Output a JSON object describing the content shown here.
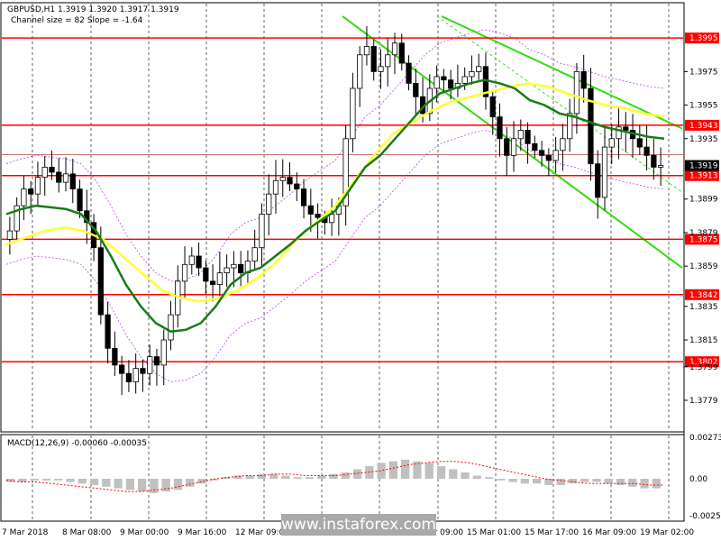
{
  "header": {
    "symbol_line": "GBPUSD,H1  1.3919 1.3920 1.3917 1.3919",
    "channel_line": "Channel size = 82 Slope = -1.64"
  },
  "macd_label": "MACD(12,26,9) -0.00060 -0.00035",
  "watermark": "www.instaforex.com",
  "colors": {
    "level_line": "#ff0000",
    "level_badge": "#ff0000",
    "ma_fast": "#1a7a1a",
    "ma_slow": "#ffff33",
    "channel": "#33dd11",
    "candles": "#000000",
    "envelope": "#b64ce0",
    "macd_hist": "#c0c0c0",
    "macd_signal": "#ff0000",
    "price_badge": "#000000"
  },
  "chart_data": {
    "type": "candlestick",
    "price_axis": {
      "ylim": [
        1.3765,
        1.4008
      ],
      "ticks": [
        "1.3975",
        "1.3955",
        "1.3935",
        "1.3899",
        "1.3879",
        "1.3859",
        "1.3835",
        "1.3815",
        "1.3799",
        "1.3779"
      ]
    },
    "levels": [
      {
        "value": 1.3995,
        "label": "1.3995"
      },
      {
        "value": 1.3943,
        "label": "1.3943"
      },
      {
        "value": 1.3913,
        "label": "1.3913"
      },
      {
        "value": 1.3875,
        "label": "1.3875"
      },
      {
        "value": 1.3842,
        "label": "1.3842"
      },
      {
        "value": 1.3802,
        "label": "1.3802"
      }
    ],
    "current_price": {
      "value": 1.3919,
      "label": "1.3919"
    },
    "x_labels": [
      "7 Mar 2018",
      "8 Mar 08:00",
      "9 Mar 00:00",
      "9 Mar 16:00",
      "12 Mar 09:00",
      "13 Mar 01:00",
      "13 Mar 17:00",
      "14 Mar 09:00",
      "15 Mar 01:00",
      "15 Mar 17:00",
      "16 Mar 09:00",
      "19 Mar 02:00"
    ],
    "close_path": [
      1.388,
      1.3895,
      1.3905,
      1.3902,
      1.3912,
      1.3918,
      1.3915,
      1.3909,
      1.3914,
      1.3905,
      1.3892,
      1.3885,
      1.387,
      1.383,
      1.381,
      1.38,
      1.3795,
      1.379,
      1.3798,
      1.3795,
      1.3805,
      1.38,
      1.3815,
      1.383,
      1.385,
      1.386,
      1.3865,
      1.3858,
      1.385,
      1.3848,
      1.3855,
      1.3858,
      1.386,
      1.3855,
      1.3862,
      1.387,
      1.389,
      1.3902,
      1.391,
      1.3912,
      1.3908,
      1.3905,
      1.3895,
      1.389,
      1.3888,
      1.3885,
      1.389,
      1.3895,
      1.3935,
      1.3965,
      1.3985,
      1.399,
      1.3975,
      1.3978,
      1.3985,
      1.3992,
      1.398,
      1.3968,
      1.396,
      1.395,
      1.3965,
      1.3972,
      1.397,
      1.3965,
      1.3968,
      1.3972,
      1.3975,
      1.3978,
      1.396,
      1.3948,
      1.3935,
      1.3925,
      1.3935,
      1.394,
      1.3932,
      1.3928,
      1.3925,
      1.3922,
      1.3928,
      1.3935,
      1.395,
      1.3975,
      1.3965,
      1.392,
      1.39,
      1.393,
      1.3935,
      1.3942,
      1.394,
      1.3935,
      1.393,
      1.3925,
      1.3918,
      1.3919
    ],
    "ma_fast": [
      1.389,
      1.3893,
      1.3895,
      1.3894,
      1.3893,
      1.389,
      1.388,
      1.3865,
      1.3848,
      1.3835,
      1.3825,
      1.382,
      1.3821,
      1.3825,
      1.3835,
      1.3848,
      1.3855,
      1.3858,
      1.3865,
      1.3872,
      1.388,
      1.3886,
      1.3892,
      1.3905,
      1.3918,
      1.3925,
      1.3935,
      1.3945,
      1.3955,
      1.3962,
      1.3965,
      1.3968,
      1.397,
      1.3968,
      1.3965,
      1.3958,
      1.3955,
      1.395,
      1.3948,
      1.3945,
      1.3942,
      1.394,
      1.3938,
      1.3936,
      1.3935
    ],
    "ma_slow": [
      1.3872,
      1.3876,
      1.388,
      1.3882,
      1.388,
      1.3875,
      1.3865,
      1.3855,
      1.3845,
      1.384,
      1.3838,
      1.384,
      1.3845,
      1.3852,
      1.3862,
      1.3875,
      1.3885,
      1.3895,
      1.391,
      1.3925,
      1.3938,
      1.3945,
      1.3952,
      1.3957,
      1.396,
      1.3963,
      1.3966,
      1.3968,
      1.3966,
      1.3962,
      1.3958,
      1.3955,
      1.3953,
      1.395,
      1.3948
    ],
    "macd_axis": {
      "ticks": [
        "0.00273",
        "0.00",
        "-0.00253"
      ]
    },
    "macd_hist": [
      -0.0002,
      -0.0002,
      -0.0001,
      -0.0001,
      -0.0001,
      -0.0002,
      -0.0003,
      -0.0004,
      -0.0005,
      -0.0006,
      -0.0007,
      -0.0008,
      -0.0009,
      -0.0008,
      -0.0007,
      -0.0005,
      -0.0003,
      -0.0001,
      0.0001,
      0.0002,
      0.0002,
      0.0003,
      0.0003,
      0.0002,
      0.0001,
      0.0001,
      0.0002,
      0.0003,
      0.0004,
      0.0006,
      0.0008,
      0.001,
      0.0011,
      0.0012,
      0.0011,
      0.001,
      0.0008,
      0.0006,
      0.0004,
      0.0002,
      0.0001,
      -0.0001,
      -0.0002,
      -0.0003,
      -0.0003,
      -0.0004,
      -0.0004,
      -0.0003,
      -0.0002,
      -0.0002,
      -0.0003,
      -0.0004,
      -0.0005,
      -0.0006,
      -0.0006
    ],
    "macd_signal": [
      -0.0001,
      -0.0002,
      -0.0002,
      -0.0003,
      -0.0004,
      -0.0005,
      -0.0006,
      -0.0007,
      -0.0008,
      -0.0008,
      -0.0007,
      -0.0006,
      -0.0004,
      -0.0002,
      0.0,
      0.0001,
      0.0002,
      0.0002,
      0.0003,
      0.0003,
      0.0002,
      0.0002,
      0.0002,
      0.0003,
      0.0004,
      0.0005,
      0.0007,
      0.0009,
      0.001,
      0.0011,
      0.0011,
      0.001,
      0.0008,
      0.0006,
      0.0004,
      0.0002,
      0.0,
      -0.0001,
      -0.0002,
      -0.0003,
      -0.0003,
      -0.0003,
      -0.0003,
      -0.0004,
      -0.0004
    ]
  }
}
